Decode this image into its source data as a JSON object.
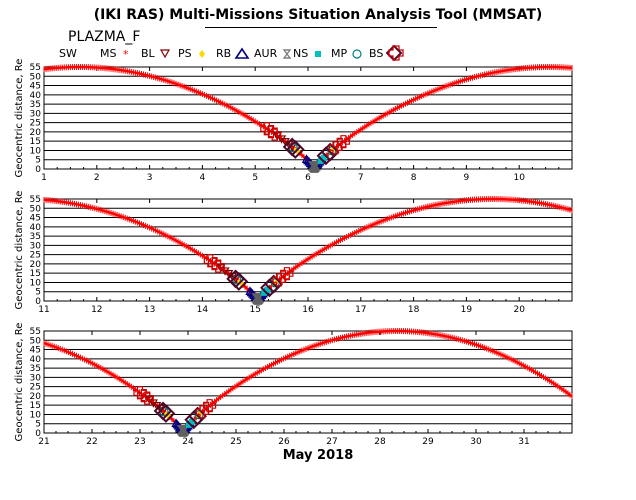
{
  "header": {
    "title": "(IKI RAS) Multi-Missions Situation Analysis Tool (MMSAT)",
    "mission": "PLAZMA_F"
  },
  "legend": [
    {
      "label": "SW",
      "symbol": "none",
      "color": "#000000"
    },
    {
      "label": "MS",
      "symbol": "star",
      "color": "#ff0000"
    },
    {
      "label": "BL",
      "symbol": "triangle-down",
      "color": "#800000"
    },
    {
      "label": "PS",
      "symbol": "diamond-small",
      "color": "#ffd700"
    },
    {
      "label": "RB",
      "symbol": "triangle-up",
      "color": "#000080"
    },
    {
      "label": "AUR",
      "symbol": "hourglass",
      "color": "#808080"
    },
    {
      "label": "NS",
      "symbol": "square",
      "color": "#00bfbf"
    },
    {
      "label": "MP",
      "symbol": "circle",
      "color": "#008080"
    },
    {
      "label": "BS",
      "symbol": "diamond-large",
      "color": "#800000"
    },
    {
      "label": "",
      "symbol": "cross",
      "color": "#cc0000"
    }
  ],
  "x_title": "May 2018",
  "chart_data": [
    {
      "type": "line",
      "ylabel": "Geocentric distance, Re",
      "ylim": [
        0,
        55
      ],
      "yticks": [
        0,
        5,
        10,
        15,
        20,
        25,
        30,
        35,
        40,
        45,
        50,
        55
      ],
      "xlim": [
        1,
        11
      ],
      "xticks": [
        "1",
        "2",
        "3",
        "4",
        "5",
        "6",
        "7",
        "8",
        "9",
        "10"
      ],
      "grid": "horizontal",
      "series": [
        {
          "values": "geocentric distance trace",
          "color": "#ff0000"
        }
      ],
      "perigee_day": 6.12,
      "orbit_period_days": 8.9,
      "max_distance": 55
    },
    {
      "type": "line",
      "ylabel": "Geocentric distance, Re",
      "ylim": [
        0,
        55
      ],
      "yticks": [
        0,
        5,
        10,
        15,
        20,
        25,
        30,
        35,
        40,
        45,
        50,
        55
      ],
      "xlim": [
        11,
        21
      ],
      "xticks": [
        "11",
        "12",
        "13",
        "14",
        "15",
        "16",
        "17",
        "18",
        "19",
        "20"
      ],
      "grid": "horizontal",
      "series": [
        {
          "values": "geocentric distance trace",
          "color": "#ff0000"
        }
      ],
      "perigee_day": 15.05,
      "orbit_period_days": 8.9,
      "max_distance": 55
    },
    {
      "type": "line",
      "ylabel": "Geocentric distance, Re",
      "ylim": [
        0,
        55
      ],
      "yticks": [
        0,
        5,
        10,
        15,
        20,
        25,
        30,
        35,
        40,
        45,
        50,
        55
      ],
      "xlim": [
        21,
        32
      ],
      "xticks": [
        "21",
        "22",
        "23",
        "24",
        "25",
        "26",
        "27",
        "28",
        "29",
        "30",
        "31"
      ],
      "grid": "horizontal",
      "series": [
        {
          "values": "geocentric distance trace",
          "color": "#ff0000"
        }
      ],
      "perigee_day": 23.9,
      "orbit_period_days": 8.9,
      "max_distance": 55
    }
  ]
}
